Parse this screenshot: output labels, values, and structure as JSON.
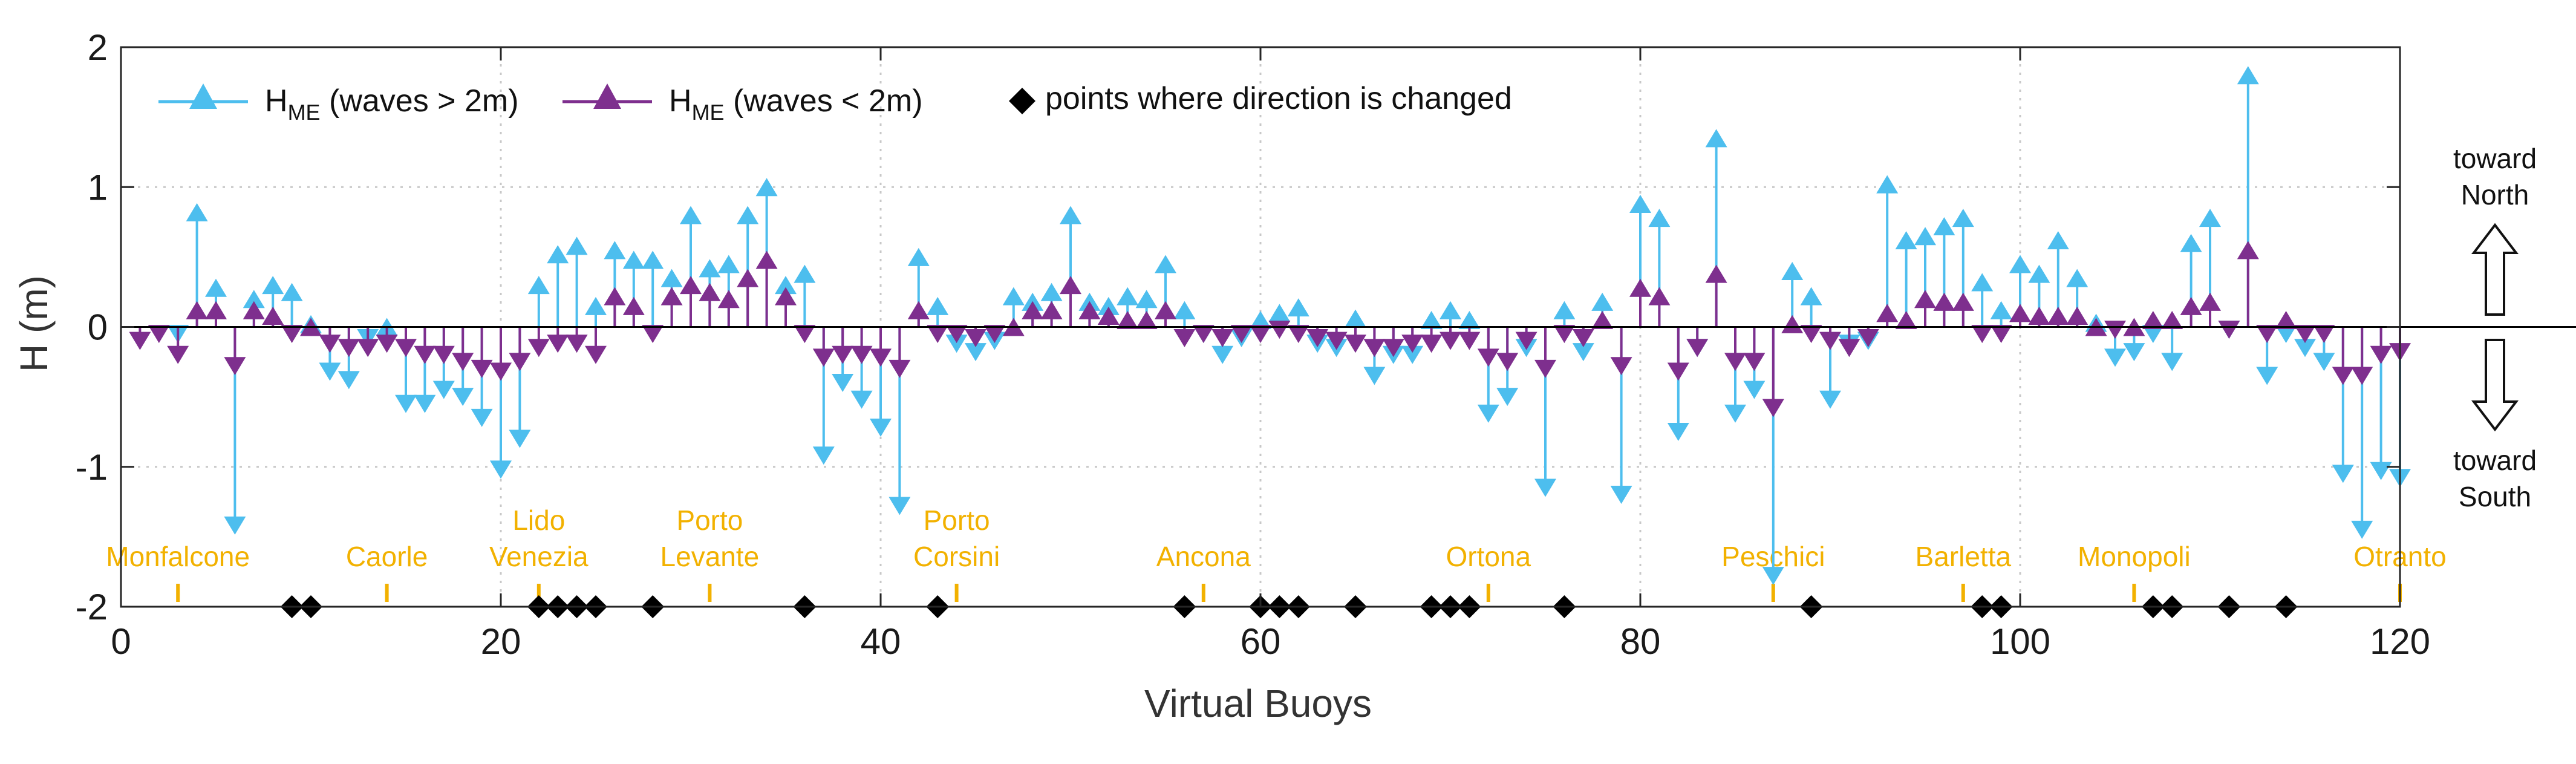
{
  "chart_data": {
    "type": "stem",
    "xlabel": "Virtual Buoys",
    "ylabel": "H (m)",
    "xlim": [
      0,
      120
    ],
    "ylim": [
      -2,
      2
    ],
    "xticks": [
      0,
      20,
      40,
      60,
      80,
      100,
      120
    ],
    "yticks": [
      -2,
      -1,
      0,
      1,
      2
    ],
    "grid": "dotted",
    "legend_position": "top-left",
    "legend": {
      "series_above": {
        "main": "H",
        "sub": "ME",
        "rest": " (waves > 2m)"
      },
      "series_below": {
        "main": "H",
        "sub": "ME",
        "rest": " (waves < 2m)"
      },
      "markers": "points where direction is changed"
    },
    "series": [
      {
        "key": "waves_gt_2m",
        "color": "#4dbeee",
        "x": [
          3,
          4,
          5,
          6,
          7,
          8,
          9,
          10,
          11,
          12,
          13,
          14,
          15,
          16,
          17,
          18,
          19,
          20,
          21,
          22,
          23,
          24,
          25,
          26,
          27,
          28,
          29,
          30,
          31,
          32,
          33,
          34,
          35,
          36,
          37,
          38,
          39,
          40,
          41,
          42,
          43,
          44,
          45,
          46,
          47,
          48,
          49,
          50,
          51,
          52,
          53,
          54,
          55,
          56,
          57,
          58,
          59,
          60,
          61,
          62,
          63,
          64,
          65,
          66,
          67,
          68,
          69,
          70,
          71,
          72,
          73,
          74,
          75,
          76,
          77,
          78,
          79,
          80,
          81,
          82,
          83,
          84,
          85,
          86,
          87,
          88,
          89,
          90,
          91,
          92,
          93,
          94,
          95,
          96,
          97,
          98,
          99,
          100,
          101,
          102,
          103,
          104,
          105,
          106,
          107,
          108,
          109,
          110,
          111,
          112,
          113,
          114,
          115,
          116,
          117,
          118,
          119,
          120
        ],
        "y": [
          -0.05,
          0.82,
          0.28,
          -1.42,
          0.2,
          0.3,
          0.25,
          0.02,
          -0.32,
          -0.38,
          -0.08,
          0.0,
          -0.55,
          -0.55,
          -0.45,
          -0.5,
          -0.65,
          -1.02,
          -0.8,
          0.3,
          0.52,
          0.58,
          0.15,
          0.55,
          0.48,
          0.48,
          0.35,
          0.8,
          0.42,
          0.45,
          0.8,
          1.0,
          0.3,
          0.38,
          -0.92,
          -0.4,
          -0.52,
          -0.72,
          -1.28,
          0.5,
          0.15,
          -0.12,
          -0.18,
          -0.1,
          0.22,
          0.18,
          0.25,
          0.8,
          0.18,
          0.15,
          0.22,
          0.2,
          0.45,
          0.12,
          -0.05,
          -0.2,
          -0.08,
          0.05,
          0.1,
          0.14,
          -0.12,
          -0.15,
          0.06,
          -0.35,
          -0.2,
          -0.2,
          0.05,
          0.12,
          0.05,
          -0.62,
          -0.5,
          -0.15,
          -1.15,
          0.12,
          -0.18,
          0.18,
          -1.2,
          0.88,
          0.78,
          -0.75,
          -0.15,
          1.35,
          -0.62,
          -0.45,
          -1.78,
          0.4,
          0.22,
          -0.52,
          -0.12,
          -0.1,
          1.02,
          0.62,
          0.65,
          0.72,
          0.78,
          0.32,
          0.12,
          0.45,
          0.38,
          0.62,
          0.35,
          0.03,
          -0.22,
          -0.18,
          -0.05,
          -0.25,
          0.6,
          0.78,
          -0.02,
          1.8,
          -0.35,
          -0.05,
          -0.15,
          -0.25,
          -1.05,
          -1.45,
          -1.03,
          -1.08
        ]
      },
      {
        "key": "waves_lt_2m",
        "color": "#7e2f8e",
        "x": [
          1,
          2,
          3,
          4,
          5,
          6,
          7,
          8,
          9,
          10,
          11,
          12,
          13,
          14,
          15,
          16,
          17,
          18,
          19,
          20,
          21,
          22,
          23,
          24,
          25,
          26,
          27,
          28,
          29,
          30,
          31,
          32,
          33,
          34,
          35,
          36,
          37,
          38,
          39,
          40,
          41,
          42,
          43,
          44,
          45,
          46,
          47,
          48,
          49,
          50,
          51,
          52,
          53,
          54,
          55,
          56,
          57,
          58,
          59,
          60,
          61,
          62,
          63,
          64,
          65,
          66,
          67,
          68,
          69,
          70,
          71,
          72,
          73,
          74,
          75,
          76,
          77,
          78,
          79,
          80,
          81,
          82,
          83,
          84,
          85,
          86,
          87,
          88,
          89,
          90,
          91,
          92,
          93,
          94,
          95,
          96,
          97,
          98,
          99,
          100,
          101,
          102,
          103,
          104,
          105,
          106,
          107,
          108,
          109,
          110,
          111,
          112,
          113,
          114,
          115,
          116,
          117,
          118,
          119,
          120
        ],
        "y": [
          -0.1,
          -0.05,
          -0.2,
          0.12,
          0.12,
          -0.28,
          0.12,
          0.08,
          -0.05,
          0.0,
          -0.12,
          -0.15,
          -0.15,
          -0.12,
          -0.15,
          -0.2,
          -0.2,
          -0.25,
          -0.3,
          -0.32,
          -0.25,
          -0.15,
          -0.12,
          -0.12,
          -0.2,
          0.22,
          0.15,
          -0.05,
          0.22,
          0.3,
          0.25,
          0.2,
          0.35,
          0.48,
          0.22,
          -0.05,
          -0.22,
          -0.2,
          -0.2,
          -0.22,
          -0.3,
          0.12,
          -0.05,
          -0.05,
          -0.08,
          -0.05,
          0.0,
          0.12,
          0.12,
          0.3,
          0.12,
          0.08,
          0.05,
          0.05,
          0.12,
          -0.08,
          -0.05,
          -0.08,
          -0.05,
          -0.05,
          -0.02,
          -0.05,
          -0.08,
          -0.1,
          -0.12,
          -0.15,
          -0.15,
          -0.12,
          -0.12,
          -0.1,
          -0.1,
          -0.22,
          -0.25,
          -0.1,
          -0.3,
          -0.05,
          -0.08,
          0.05,
          -0.28,
          0.28,
          0.22,
          -0.32,
          -0.15,
          0.38,
          -0.25,
          -0.25,
          -0.58,
          0.02,
          -0.05,
          -0.1,
          -0.15,
          -0.08,
          0.1,
          0.05,
          0.2,
          0.18,
          0.18,
          -0.05,
          -0.05,
          0.1,
          0.08,
          0.08,
          0.08,
          0.0,
          -0.02,
          0.0,
          0.05,
          0.05,
          0.15,
          0.18,
          -0.02,
          0.55,
          -0.05,
          0.05,
          -0.05,
          -0.05,
          -0.35,
          -0.35,
          -0.2,
          -0.18
        ]
      }
    ],
    "direction_change_points": [
      9,
      10,
      22,
      23,
      24,
      25,
      28,
      36,
      43,
      56,
      60,
      61,
      62,
      65,
      69,
      70,
      71,
      76,
      89,
      98,
      99,
      107,
      108,
      111,
      114
    ],
    "locations": [
      {
        "name": "Monfalcone",
        "x": 3
      },
      {
        "name": "Caorle",
        "x": 14
      },
      {
        "name": "Lido Venezia",
        "lines": [
          "Lido",
          "Venezia"
        ],
        "x": 22
      },
      {
        "name": "Porto Levante",
        "lines": [
          "Porto",
          "Levante"
        ],
        "x": 31
      },
      {
        "name": "Porto Corsini",
        "lines": [
          "Porto",
          "Corsini"
        ],
        "x": 44
      },
      {
        "name": "Ancona",
        "x": 57
      },
      {
        "name": "Ortona",
        "x": 72
      },
      {
        "name": "Peschici",
        "x": 87
      },
      {
        "name": "Barletta",
        "x": 97
      },
      {
        "name": "Monopoli",
        "x": 106
      },
      {
        "name": "Otranto",
        "x": 120
      }
    ],
    "annotations": {
      "north": [
        "toward",
        "North"
      ],
      "south": [
        "toward",
        "South"
      ]
    }
  }
}
